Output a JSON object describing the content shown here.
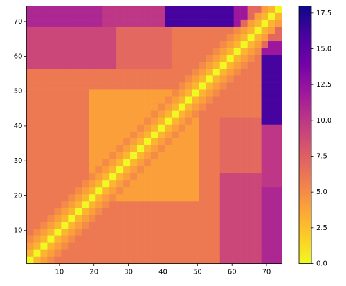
{
  "chart_data": {
    "type": "heatmap",
    "x": [
      1.5,
      3.5,
      5.5,
      7.5,
      9.5,
      11.5,
      13.5,
      15.5,
      17.5,
      19.5,
      21.5,
      23.5,
      25.5,
      27.5,
      29.5,
      31.5,
      33.5,
      35.5,
      37.5,
      39.5,
      41.5,
      43.5,
      45.5,
      47.5,
      49.5,
      51.5,
      53.5,
      55.5,
      57.5,
      59.5,
      61.5,
      63.5,
      65.5,
      67.5,
      69.5,
      71.5,
      73.5
    ],
    "y": [
      1.5,
      3.5,
      5.5,
      7.5,
      9.5,
      11.5,
      13.5,
      15.5,
      17.5,
      19.5,
      21.5,
      23.5,
      25.5,
      27.5,
      29.5,
      31.5,
      33.5,
      35.5,
      37.5,
      39.5,
      41.5,
      43.5,
      45.5,
      47.5,
      49.5,
      51.5,
      53.5,
      55.5,
      57.5,
      59.5,
      61.5,
      63.5,
      65.5,
      67.5,
      69.5,
      71.5,
      73.5
    ],
    "z": [
      [
        0,
        3,
        4,
        5,
        6,
        6,
        6,
        6,
        6,
        6,
        6,
        6,
        6,
        6,
        6,
        6,
        6,
        6,
        6,
        6,
        6,
        6,
        6,
        6,
        6,
        6,
        6,
        6,
        9,
        9,
        9,
        9,
        9,
        9,
        11,
        11,
        11
      ],
      [
        3,
        0,
        3,
        4,
        5,
        6,
        6,
        6,
        6,
        6,
        6,
        6,
        6,
        6,
        6,
        6,
        6,
        6,
        6,
        6,
        6,
        6,
        6,
        6,
        6,
        6,
        6,
        6,
        9,
        9,
        9,
        9,
        9,
        9,
        11,
        11,
        11
      ],
      [
        4,
        3,
        0,
        3,
        4,
        5,
        6,
        6,
        6,
        6,
        6,
        6,
        6,
        6,
        6,
        6,
        6,
        6,
        6,
        6,
        6,
        6,
        6,
        6,
        6,
        6,
        6,
        6,
        9,
        9,
        9,
        9,
        9,
        9,
        11,
        11,
        11
      ],
      [
        5,
        4,
        3,
        0,
        3,
        4,
        5,
        6,
        6,
        6,
        6,
        6,
        6,
        6,
        6,
        6,
        6,
        6,
        6,
        6,
        6,
        6,
        6,
        6,
        6,
        6,
        6,
        6,
        9,
        9,
        9,
        9,
        9,
        9,
        11,
        11,
        11
      ],
      [
        6,
        5,
        4,
        3,
        0,
        3,
        4,
        5,
        6,
        6,
        6,
        6,
        6,
        6,
        6,
        6,
        6,
        6,
        6,
        6,
        6,
        6,
        6,
        6,
        6,
        6,
        6,
        6,
        9,
        9,
        9,
        9,
        9,
        9,
        11,
        11,
        11
      ],
      [
        6,
        6,
        5,
        4,
        3,
        0,
        3,
        4,
        5,
        6,
        6,
        6,
        6,
        6,
        6,
        6,
        6,
        6,
        6,
        6,
        6,
        6,
        6,
        6,
        6,
        6,
        6,
        6,
        9,
        9,
        9,
        9,
        9,
        9,
        11,
        11,
        11
      ],
      [
        6,
        6,
        6,
        5,
        4,
        3,
        0,
        3,
        4,
        5,
        6,
        6,
        6,
        6,
        6,
        6,
        6,
        6,
        6,
        6,
        6,
        6,
        6,
        6,
        6,
        6,
        6,
        6,
        9,
        9,
        9,
        9,
        9,
        9,
        11,
        11,
        11
      ],
      [
        6,
        6,
        6,
        6,
        5,
        4,
        3,
        0,
        3,
        4,
        5,
        6,
        6,
        6,
        6,
        6,
        6,
        6,
        6,
        6,
        6,
        6,
        6,
        6,
        6,
        6,
        6,
        6,
        9,
        9,
        9,
        9,
        9,
        9,
        11,
        11,
        11
      ],
      [
        6,
        6,
        6,
        6,
        6,
        5,
        4,
        3,
        0,
        3,
        4,
        5,
        6,
        6,
        6,
        6,
        6,
        6,
        6,
        6,
        6,
        6,
        6,
        6,
        6,
        6,
        6,
        6,
        9,
        9,
        9,
        9,
        9,
        9,
        11,
        11,
        11
      ],
      [
        6,
        6,
        6,
        6,
        6,
        6,
        5,
        4,
        3,
        0,
        3,
        4,
        5,
        4,
        4,
        4,
        4,
        4,
        4,
        4,
        4,
        4,
        4,
        4,
        4,
        6,
        6,
        6,
        9,
        9,
        9,
        9,
        9,
        9,
        11,
        11,
        11
      ],
      [
        6,
        6,
        6,
        6,
        6,
        6,
        6,
        5,
        4,
        3,
        0,
        3,
        4,
        5,
        4,
        4,
        4,
        4,
        4,
        4,
        4,
        4,
        4,
        4,
        4,
        6,
        6,
        6,
        9,
        9,
        9,
        9,
        9,
        9,
        11,
        11,
        11
      ],
      [
        6,
        6,
        6,
        6,
        6,
        6,
        6,
        6,
        5,
        4,
        3,
        0,
        3,
        4,
        5,
        4,
        4,
        4,
        4,
        4,
        4,
        4,
        4,
        4,
        4,
        6,
        6,
        6,
        9,
        9,
        9,
        9,
        9,
        9,
        10,
        10,
        10
      ],
      [
        6,
        6,
        6,
        6,
        6,
        6,
        6,
        6,
        6,
        5,
        4,
        3,
        0,
        3,
        4,
        5,
        4,
        4,
        4,
        4,
        4,
        4,
        4,
        4,
        4,
        6,
        6,
        6,
        9,
        9,
        9,
        9,
        9,
        9,
        10,
        10,
        10
      ],
      [
        6,
        6,
        6,
        6,
        6,
        6,
        6,
        6,
        6,
        4,
        5,
        4,
        3,
        0,
        3,
        4,
        5,
        4,
        4,
        4,
        4,
        4,
        4,
        4,
        4,
        6,
        6,
        6,
        7,
        7,
        7,
        7,
        7,
        7,
        10,
        10,
        10
      ],
      [
        6,
        6,
        6,
        6,
        6,
        6,
        6,
        6,
        6,
        4,
        4,
        5,
        4,
        3,
        0,
        3,
        4,
        5,
        4,
        4,
        4,
        4,
        4,
        4,
        4,
        6,
        6,
        6,
        7,
        7,
        7,
        7,
        7,
        7,
        10,
        10,
        10
      ],
      [
        6,
        6,
        6,
        6,
        6,
        6,
        6,
        6,
        6,
        4,
        4,
        4,
        5,
        4,
        3,
        0,
        3,
        4,
        5,
        4,
        4,
        4,
        4,
        4,
        4,
        6,
        6,
        6,
        7,
        7,
        7,
        7,
        7,
        7,
        10,
        10,
        10
      ],
      [
        6,
        6,
        6,
        6,
        6,
        6,
        6,
        6,
        6,
        4,
        4,
        4,
        4,
        5,
        4,
        3,
        0,
        3,
        4,
        5,
        4,
        4,
        4,
        4,
        4,
        6,
        6,
        6,
        7,
        7,
        7,
        7,
        7,
        7,
        10,
        10,
        10
      ],
      [
        6,
        6,
        6,
        6,
        6,
        6,
        6,
        6,
        6,
        4,
        4,
        4,
        4,
        4,
        5,
        4,
        3,
        0,
        3,
        4,
        5,
        4,
        4,
        4,
        4,
        6,
        6,
        6,
        7,
        7,
        7,
        7,
        7,
        7,
        10,
        10,
        10
      ],
      [
        6,
        6,
        6,
        6,
        6,
        6,
        6,
        6,
        6,
        4,
        4,
        4,
        4,
        4,
        4,
        5,
        4,
        3,
        0,
        3,
        4,
        5,
        4,
        4,
        4,
        6,
        6,
        6,
        7,
        7,
        7,
        7,
        7,
        7,
        10,
        10,
        10
      ],
      [
        6,
        6,
        6,
        6,
        6,
        6,
        6,
        6,
        6,
        4,
        4,
        4,
        4,
        4,
        4,
        4,
        5,
        4,
        3,
        0,
        3,
        4,
        5,
        4,
        4,
        6,
        6,
        6,
        7,
        7,
        7,
        7,
        7,
        7,
        10,
        10,
        10
      ],
      [
        6,
        6,
        6,
        6,
        6,
        6,
        6,
        6,
        6,
        4,
        4,
        4,
        4,
        4,
        4,
        4,
        4,
        5,
        4,
        3,
        0,
        3,
        4,
        5,
        4,
        6,
        6,
        6,
        7,
        7,
        7,
        7,
        7,
        7,
        16,
        16,
        16
      ],
      [
        6,
        6,
        6,
        6,
        6,
        6,
        6,
        6,
        6,
        4,
        4,
        4,
        4,
        4,
        4,
        4,
        4,
        4,
        5,
        4,
        3,
        0,
        3,
        4,
        5,
        6,
        6,
        6,
        6,
        6,
        6,
        6,
        6,
        6,
        16,
        16,
        16
      ],
      [
        6,
        6,
        6,
        6,
        6,
        6,
        6,
        6,
        6,
        4,
        4,
        4,
        4,
        4,
        4,
        4,
        4,
        4,
        4,
        5,
        4,
        3,
        0,
        3,
        4,
        5,
        6,
        6,
        6,
        6,
        6,
        6,
        6,
        6,
        16,
        16,
        16
      ],
      [
        6,
        6,
        6,
        6,
        6,
        6,
        6,
        6,
        6,
        4,
        4,
        4,
        4,
        4,
        4,
        4,
        4,
        4,
        4,
        4,
        5,
        4,
        3,
        0,
        3,
        4,
        5,
        6,
        6,
        6,
        6,
        6,
        6,
        6,
        16,
        16,
        16
      ],
      [
        6,
        6,
        6,
        6,
        6,
        6,
        6,
        6,
        6,
        4,
        4,
        4,
        4,
        4,
        4,
        4,
        4,
        4,
        4,
        4,
        4,
        5,
        4,
        3,
        0,
        3,
        4,
        5,
        6,
        6,
        6,
        6,
        6,
        6,
        16,
        16,
        16
      ],
      [
        6,
        6,
        6,
        6,
        6,
        6,
        6,
        6,
        6,
        6,
        6,
        6,
        6,
        6,
        6,
        6,
        6,
        6,
        6,
        6,
        6,
        6,
        5,
        4,
        3,
        0,
        3,
        4,
        5,
        6,
        6,
        6,
        6,
        6,
        16,
        16,
        16
      ],
      [
        6,
        6,
        6,
        6,
        6,
        6,
        6,
        6,
        6,
        6,
        6,
        6,
        6,
        6,
        6,
        6,
        6,
        6,
        6,
        6,
        6,
        6,
        6,
        5,
        4,
        3,
        0,
        3,
        4,
        5,
        6,
        6,
        6,
        6,
        16,
        16,
        16
      ],
      [
        6,
        6,
        6,
        6,
        6,
        6,
        6,
        6,
        6,
        6,
        6,
        6,
        6,
        6,
        6,
        6,
        6,
        6,
        6,
        6,
        6,
        6,
        6,
        6,
        5,
        4,
        3,
        0,
        3,
        4,
        5,
        6,
        6,
        6,
        16,
        16,
        16
      ],
      [
        9,
        9,
        9,
        9,
        9,
        9,
        9,
        9,
        9,
        9,
        9,
        9,
        9,
        7,
        7,
        7,
        7,
        7,
        7,
        7,
        7,
        6,
        6,
        6,
        6,
        5,
        4,
        3,
        0,
        3,
        4,
        5,
        6,
        6,
        16,
        16,
        16
      ],
      [
        9,
        9,
        9,
        9,
        9,
        9,
        9,
        9,
        9,
        9,
        9,
        9,
        9,
        7,
        7,
        7,
        7,
        7,
        7,
        7,
        7,
        6,
        6,
        6,
        6,
        6,
        5,
        4,
        3,
        0,
        3,
        4,
        5,
        6,
        16,
        16,
        16
      ],
      [
        9,
        9,
        9,
        9,
        9,
        9,
        9,
        9,
        9,
        9,
        9,
        9,
        9,
        7,
        7,
        7,
        7,
        7,
        7,
        7,
        7,
        6,
        6,
        6,
        6,
        6,
        6,
        5,
        4,
        3,
        0,
        3,
        4,
        5,
        12,
        12,
        12
      ],
      [
        9,
        9,
        9,
        9,
        9,
        9,
        9,
        9,
        9,
        9,
        9,
        9,
        9,
        7,
        7,
        7,
        7,
        7,
        7,
        7,
        7,
        6,
        6,
        6,
        6,
        6,
        6,
        6,
        5,
        4,
        3,
        0,
        3,
        4,
        7,
        12,
        12
      ],
      [
        9,
        9,
        9,
        9,
        9,
        9,
        9,
        9,
        9,
        9,
        9,
        9,
        9,
        7,
        7,
        7,
        7,
        7,
        7,
        7,
        7,
        6,
        6,
        6,
        6,
        6,
        6,
        6,
        6,
        5,
        4,
        3,
        0,
        3,
        4,
        7,
        7
      ],
      [
        9,
        9,
        9,
        9,
        9,
        9,
        9,
        9,
        9,
        9,
        9,
        9,
        9,
        7,
        7,
        7,
        7,
        7,
        7,
        7,
        7,
        6,
        6,
        6,
        6,
        6,
        6,
        6,
        6,
        6,
        5,
        4,
        3,
        0,
        3,
        4,
        7
      ],
      [
        11,
        11,
        11,
        11,
        11,
        11,
        11,
        11,
        11,
        11,
        11,
        10,
        10,
        10,
        10,
        10,
        10,
        10,
        10,
        10,
        16,
        16,
        16,
        16,
        16,
        16,
        16,
        16,
        16,
        16,
        12,
        7,
        4,
        3,
        0,
        3,
        4
      ],
      [
        11,
        11,
        11,
        11,
        11,
        11,
        11,
        11,
        11,
        11,
        11,
        10,
        10,
        10,
        10,
        10,
        10,
        10,
        10,
        10,
        16,
        16,
        16,
        16,
        16,
        16,
        16,
        16,
        16,
        16,
        12,
        12,
        7,
        4,
        3,
        0,
        3
      ],
      [
        11,
        11,
        11,
        11,
        11,
        11,
        11,
        11,
        11,
        11,
        11,
        10,
        10,
        10,
        10,
        10,
        10,
        10,
        10,
        10,
        16,
        16,
        16,
        16,
        16,
        16,
        16,
        16,
        16,
        16,
        12,
        12,
        7,
        7,
        4,
        3,
        0
      ]
    ],
    "xlim": [
      0.5,
      74.5
    ],
    "ylim": [
      0.5,
      74.5
    ],
    "xticks": [
      10,
      20,
      30,
      40,
      50,
      60,
      70
    ],
    "yticks": [
      10,
      20,
      30,
      40,
      50,
      60,
      70
    ],
    "colormap": "plasma_r",
    "clim": [
      0,
      18
    ],
    "cticks": [
      {
        "value": 0,
        "label": "0.0"
      },
      {
        "value": 2.5,
        "label": "2.5"
      },
      {
        "value": 5,
        "label": "5.0"
      },
      {
        "value": 7.5,
        "label": "7.5"
      },
      {
        "value": 10,
        "label": "10.0"
      },
      {
        "value": 12.5,
        "label": "12.5"
      },
      {
        "value": 15,
        "label": "15.0"
      },
      {
        "value": 17.5,
        "label": "17.5"
      }
    ]
  }
}
